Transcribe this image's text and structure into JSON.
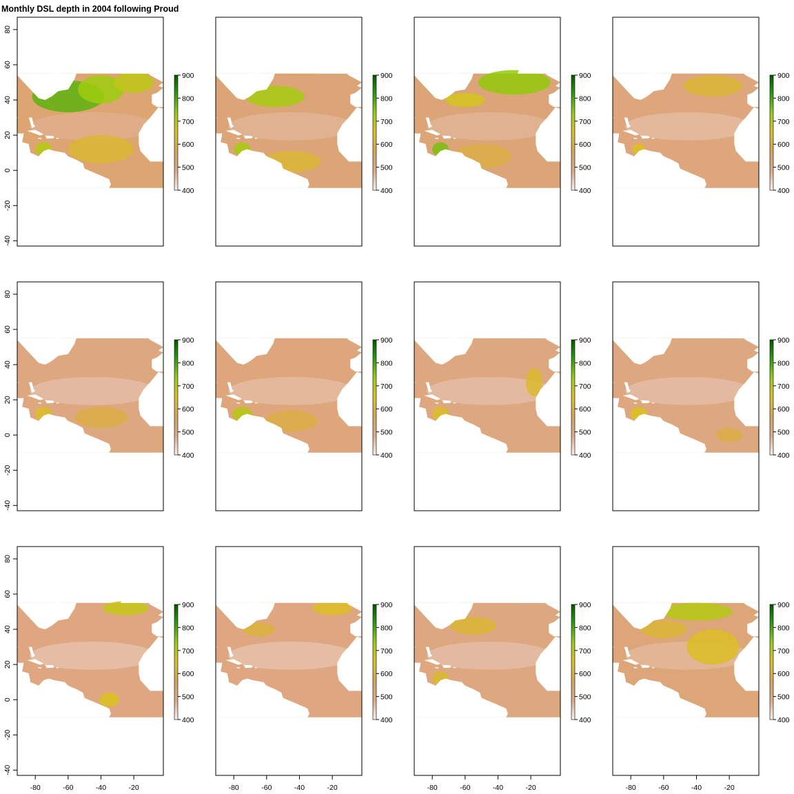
{
  "title": "Monthly DSL depth in 2004 following Proud",
  "chart_data": {
    "type": "heatmap",
    "title": "Monthly DSL depth in 2004 following Proud",
    "layout": "3 rows x 4 columns of map panels (12 monthly maps)",
    "xlabel": "",
    "ylabel": "",
    "xlim": [
      -91,
      -2
    ],
    "ylim": [
      -43,
      87
    ],
    "x_ticks": [
      -80,
      -60,
      -40,
      -20
    ],
    "y_ticks": [
      80,
      60,
      40,
      20,
      0,
      -20,
      -40
    ],
    "data_extent": {
      "lon": [
        -91,
        -2
      ],
      "lat": [
        -10,
        55
      ]
    },
    "colorbar": {
      "ticks": [
        900,
        800,
        700,
        600,
        500,
        400
      ],
      "range": [
        400,
        900
      ],
      "colors": [
        "#f2f2f2",
        "#dfa98a",
        "#d9a15e",
        "#dcc21e",
        "#9ccd0c",
        "#2e9e12",
        "#005c00"
      ]
    },
    "panels": [
      {
        "index": 1,
        "base": 530,
        "features": [
          {
            "lon": -60,
            "lat": 42,
            "value": 780,
            "rx": 22,
            "ry": 9
          },
          {
            "lon": -40,
            "lat": 46,
            "value": 730,
            "rx": 14,
            "ry": 8
          },
          {
            "lon": -20,
            "lat": 50,
            "value": 690,
            "rx": 12,
            "ry": 6
          },
          {
            "lon": -75,
            "lat": 12,
            "value": 700,
            "rx": 5,
            "ry": 4
          },
          {
            "lon": -40,
            "lat": 12,
            "value": 620,
            "rx": 20,
            "ry": 8
          }
        ]
      },
      {
        "index": 2,
        "base": 520,
        "features": [
          {
            "lon": -55,
            "lat": 42,
            "value": 720,
            "rx": 18,
            "ry": 6
          },
          {
            "lon": -75,
            "lat": 12,
            "value": 720,
            "rx": 5,
            "ry": 4
          },
          {
            "lon": -45,
            "lat": 5,
            "value": 620,
            "rx": 18,
            "ry": 6
          }
        ]
      },
      {
        "index": 3,
        "base": 520,
        "features": [
          {
            "lon": -30,
            "lat": 50,
            "value": 740,
            "rx": 22,
            "ry": 7
          },
          {
            "lon": -60,
            "lat": 40,
            "value": 660,
            "rx": 12,
            "ry": 4
          },
          {
            "lon": -75,
            "lat": 12,
            "value": 760,
            "rx": 5,
            "ry": 4
          },
          {
            "lon": -50,
            "lat": 8,
            "value": 600,
            "rx": 18,
            "ry": 7
          }
        ]
      },
      {
        "index": 4,
        "base": 510,
        "features": [
          {
            "lon": -30,
            "lat": 48,
            "value": 620,
            "rx": 18,
            "ry": 6
          },
          {
            "lon": -75,
            "lat": 12,
            "value": 650,
            "rx": 4,
            "ry": 3
          }
        ]
      },
      {
        "index": 5,
        "base": 505,
        "features": [
          {
            "lon": -75,
            "lat": 12,
            "value": 640,
            "rx": 5,
            "ry": 4
          },
          {
            "lon": -40,
            "lat": 10,
            "value": 600,
            "rx": 16,
            "ry": 6
          }
        ]
      },
      {
        "index": 6,
        "base": 510,
        "features": [
          {
            "lon": -75,
            "lat": 12,
            "value": 700,
            "rx": 6,
            "ry": 4
          },
          {
            "lon": -45,
            "lat": 8,
            "value": 600,
            "rx": 16,
            "ry": 6
          }
        ]
      },
      {
        "index": 7,
        "base": 505,
        "features": [
          {
            "lon": -75,
            "lat": 12,
            "value": 640,
            "rx": 5,
            "ry": 4
          },
          {
            "lon": -18,
            "lat": 30,
            "value": 630,
            "rx": 5,
            "ry": 8
          }
        ]
      },
      {
        "index": 8,
        "base": 505,
        "features": [
          {
            "lon": -75,
            "lat": 12,
            "value": 650,
            "rx": 5,
            "ry": 4
          },
          {
            "lon": -20,
            "lat": 0,
            "value": 600,
            "rx": 8,
            "ry": 4
          }
        ]
      },
      {
        "index": 9,
        "base": 500,
        "features": [
          {
            "lon": -25,
            "lat": 52,
            "value": 680,
            "rx": 14,
            "ry": 4
          },
          {
            "lon": -35,
            "lat": 0,
            "value": 650,
            "rx": 6,
            "ry": 4
          }
        ]
      },
      {
        "index": 10,
        "base": 500,
        "features": [
          {
            "lon": -20,
            "lat": 52,
            "value": 640,
            "rx": 12,
            "ry": 4
          },
          {
            "lon": -65,
            "lat": 40,
            "value": 610,
            "rx": 10,
            "ry": 4
          }
        ]
      },
      {
        "index": 11,
        "base": 505,
        "features": [
          {
            "lon": -55,
            "lat": 42,
            "value": 620,
            "rx": 14,
            "ry": 5
          },
          {
            "lon": -75,
            "lat": 12,
            "value": 630,
            "rx": 5,
            "ry": 4
          }
        ]
      },
      {
        "index": 12,
        "base": 515,
        "features": [
          {
            "lon": -40,
            "lat": 50,
            "value": 700,
            "rx": 22,
            "ry": 5
          },
          {
            "lon": -30,
            "lat": 30,
            "value": 640,
            "rx": 16,
            "ry": 10
          },
          {
            "lon": -60,
            "lat": 40,
            "value": 620,
            "rx": 14,
            "ry": 5
          }
        ]
      }
    ]
  }
}
